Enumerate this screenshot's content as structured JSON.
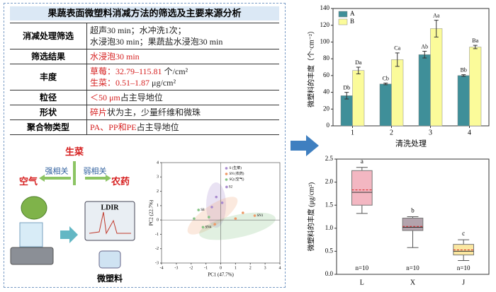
{
  "panel": {
    "title": "果蔬表面微塑料消减方法的筛选及主要来源分析"
  },
  "table": {
    "rows": [
      {
        "label": "消减处理筛选",
        "lines": [
          [
            {
              "text": "超声30 min；水冲洗1次；",
              "color": "#222222"
            }
          ],
          [
            {
              "text": "水浸泡30 min；果蔬盐水浸泡30 min",
              "color": "#222222"
            }
          ]
        ]
      },
      {
        "label": "筛选结果",
        "lines": [
          [
            {
              "text": "水浸泡30 min",
              "color": "#d62020"
            }
          ]
        ]
      },
      {
        "label": "丰度",
        "lines": [
          [
            {
              "text": "草莓：32.79–115.81",
              "color": "#d62020"
            },
            {
              "text": " 个/cm²",
              "color": "#222222"
            }
          ],
          [
            {
              "text": "生菜：0.51–1.87",
              "color": "#d62020"
            },
            {
              "text": " μg/cm²",
              "color": "#222222"
            }
          ]
        ]
      },
      {
        "label": "粒径",
        "lines": [
          [
            {
              "text": "＜50 μm",
              "color": "#d62020"
            },
            {
              "text": "占主导地位",
              "color": "#222222"
            }
          ]
        ]
      },
      {
        "label": "形状",
        "lines": [
          [
            {
              "text": "碎片",
              "color": "#d62020"
            },
            {
              "text": "状为主，少量纤维和微珠",
              "color": "#222222"
            }
          ]
        ]
      },
      {
        "label": "聚合物类型",
        "lines": [
          [
            {
              "text": "PA、PP和PE",
              "color": "#d62020"
            },
            {
              "text": "占主导地位",
              "color": "#222222"
            }
          ]
        ]
      }
    ]
  },
  "diagram": {
    "lettuce": "生菜",
    "strong": "强相关",
    "weak": "弱相关",
    "air": "空气",
    "pesticide": "农药",
    "device": "LDIR",
    "microplastic": "微塑料"
  },
  "chart_data": [
    {
      "type": "bar",
      "x_label": "清洗处理",
      "y_label": "微塑料的丰度（个·cm⁻²）",
      "categories": [
        "1",
        "2",
        "3",
        "4"
      ],
      "series": [
        {
          "name": "A",
          "color": "#3f8f99",
          "values": [
            36,
            50,
            85,
            60
          ],
          "errors": [
            4,
            1,
            4,
            1
          ],
          "letters": [
            "Db",
            "Cb",
            "Ab",
            "Bb"
          ]
        },
        {
          "name": "B",
          "color": "#fbfb9a",
          "values": [
            66,
            79,
            116,
            94
          ],
          "errors": [
            4,
            8,
            10,
            2
          ],
          "letters": [
            "Da",
            "Ca",
            "Aa",
            "Ba"
          ]
        }
      ],
      "ylim": [
        0,
        140
      ],
      "yticks": [
        0,
        20,
        40,
        60,
        80,
        100,
        120,
        140
      ],
      "legend": "top-left"
    },
    {
      "type": "box",
      "y_label": "微塑料的丰度 (μg/cm²)",
      "categories": [
        "L",
        "X",
        "J"
      ],
      "colors": [
        "#f3b7c2",
        "#b3a3ad",
        "#fbe7a1"
      ],
      "whisker_low": [
        1.32,
        0.58,
        0.3
      ],
      "q1": [
        1.5,
        0.95,
        0.42
      ],
      "median": [
        1.78,
        1.02,
        0.5
      ],
      "q3": [
        2.25,
        1.22,
        0.65
      ],
      "whisker_high": [
        2.32,
        1.25,
        0.75
      ],
      "means": [
        1.83,
        1.04,
        0.53
      ],
      "letters": [
        "a",
        "b",
        "c"
      ],
      "n_labels": [
        "n=10",
        "n=10",
        "n=10"
      ],
      "ylim": [
        0,
        2.5
      ],
      "yticks": [
        {
          "value": 0,
          "label": "0.0"
        },
        0.5,
        {
          "value": 1,
          "label": "1.0"
        },
        1.5,
        {
          "value": 2,
          "label": "2.0"
        },
        2.5
      ]
    },
    {
      "type": "scatter",
      "x_label": "PC1 (47.7%)",
      "y_label": "PC2 (22.7%)",
      "series": [
        {
          "name": "S (生菜)",
          "color": "#a98bcf",
          "x": [
            0.4,
            -0.3,
            0.1,
            -0.6
          ],
          "y": [
            2.3,
            1.6,
            1.2,
            0.9
          ],
          "point_labels": [
            "S2",
            null,
            null,
            null
          ]
        },
        {
          "name": "SN (农药)",
          "color": "#ee9a68",
          "x": [
            2.3,
            1.5,
            1.0,
            -0.4
          ],
          "y": [
            0.3,
            0.5,
            0.1,
            -0.3
          ],
          "point_labels": [
            "SN1",
            null,
            null,
            null
          ]
        },
        {
          "name": "SQ (空气)",
          "color": "#86c486",
          "x": [
            -1.5,
            -1.2,
            -0.8,
            -1.8
          ],
          "y": [
            0.7,
            -0.5,
            0.2,
            0.1
          ],
          "point_labels": [
            "S8",
            "SN4",
            null,
            null
          ]
        }
      ],
      "xlim": [
        -4,
        4
      ],
      "xticks": [
        -4,
        -3,
        -2,
        -1,
        0,
        1,
        2,
        3,
        4
      ],
      "ylim": [
        -3,
        4
      ],
      "yticks": [
        -3,
        -2,
        -1,
        0,
        1,
        2,
        3,
        4
      ]
    }
  ]
}
